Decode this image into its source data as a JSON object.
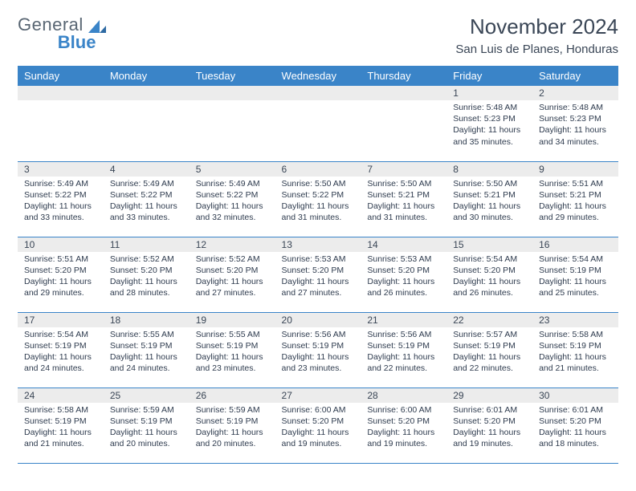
{
  "logo": {
    "general": "General",
    "blue": "Blue"
  },
  "header": {
    "month_title": "November 2024",
    "location": "San Luis de Planes, Honduras"
  },
  "colors": {
    "header_bg": "#3a84c8",
    "header_text": "#ffffff",
    "rule": "#3a84c8",
    "daynum_bg": "#ececec",
    "body_text": "#2e3b4e",
    "logo_gray": "#596673",
    "logo_blue": "#3a84c8"
  },
  "weekday_headers": [
    "Sunday",
    "Monday",
    "Tuesday",
    "Wednesday",
    "Thursday",
    "Friday",
    "Saturday"
  ],
  "weeks": [
    [
      {
        "empty": true
      },
      {
        "empty": true
      },
      {
        "empty": true
      },
      {
        "empty": true
      },
      {
        "empty": true
      },
      {
        "num": "1",
        "sunrise": "Sunrise: 5:48 AM",
        "sunset": "Sunset: 5:23 PM",
        "daylight": "Daylight: 11 hours and 35 minutes."
      },
      {
        "num": "2",
        "sunrise": "Sunrise: 5:48 AM",
        "sunset": "Sunset: 5:23 PM",
        "daylight": "Daylight: 11 hours and 34 minutes."
      }
    ],
    [
      {
        "num": "3",
        "sunrise": "Sunrise: 5:49 AM",
        "sunset": "Sunset: 5:22 PM",
        "daylight": "Daylight: 11 hours and 33 minutes."
      },
      {
        "num": "4",
        "sunrise": "Sunrise: 5:49 AM",
        "sunset": "Sunset: 5:22 PM",
        "daylight": "Daylight: 11 hours and 33 minutes."
      },
      {
        "num": "5",
        "sunrise": "Sunrise: 5:49 AM",
        "sunset": "Sunset: 5:22 PM",
        "daylight": "Daylight: 11 hours and 32 minutes."
      },
      {
        "num": "6",
        "sunrise": "Sunrise: 5:50 AM",
        "sunset": "Sunset: 5:22 PM",
        "daylight": "Daylight: 11 hours and 31 minutes."
      },
      {
        "num": "7",
        "sunrise": "Sunrise: 5:50 AM",
        "sunset": "Sunset: 5:21 PM",
        "daylight": "Daylight: 11 hours and 31 minutes."
      },
      {
        "num": "8",
        "sunrise": "Sunrise: 5:50 AM",
        "sunset": "Sunset: 5:21 PM",
        "daylight": "Daylight: 11 hours and 30 minutes."
      },
      {
        "num": "9",
        "sunrise": "Sunrise: 5:51 AM",
        "sunset": "Sunset: 5:21 PM",
        "daylight": "Daylight: 11 hours and 29 minutes."
      }
    ],
    [
      {
        "num": "10",
        "sunrise": "Sunrise: 5:51 AM",
        "sunset": "Sunset: 5:20 PM",
        "daylight": "Daylight: 11 hours and 29 minutes."
      },
      {
        "num": "11",
        "sunrise": "Sunrise: 5:52 AM",
        "sunset": "Sunset: 5:20 PM",
        "daylight": "Daylight: 11 hours and 28 minutes."
      },
      {
        "num": "12",
        "sunrise": "Sunrise: 5:52 AM",
        "sunset": "Sunset: 5:20 PM",
        "daylight": "Daylight: 11 hours and 27 minutes."
      },
      {
        "num": "13",
        "sunrise": "Sunrise: 5:53 AM",
        "sunset": "Sunset: 5:20 PM",
        "daylight": "Daylight: 11 hours and 27 minutes."
      },
      {
        "num": "14",
        "sunrise": "Sunrise: 5:53 AM",
        "sunset": "Sunset: 5:20 PM",
        "daylight": "Daylight: 11 hours and 26 minutes."
      },
      {
        "num": "15",
        "sunrise": "Sunrise: 5:54 AM",
        "sunset": "Sunset: 5:20 PM",
        "daylight": "Daylight: 11 hours and 26 minutes."
      },
      {
        "num": "16",
        "sunrise": "Sunrise: 5:54 AM",
        "sunset": "Sunset: 5:19 PM",
        "daylight": "Daylight: 11 hours and 25 minutes."
      }
    ],
    [
      {
        "num": "17",
        "sunrise": "Sunrise: 5:54 AM",
        "sunset": "Sunset: 5:19 PM",
        "daylight": "Daylight: 11 hours and 24 minutes."
      },
      {
        "num": "18",
        "sunrise": "Sunrise: 5:55 AM",
        "sunset": "Sunset: 5:19 PM",
        "daylight": "Daylight: 11 hours and 24 minutes."
      },
      {
        "num": "19",
        "sunrise": "Sunrise: 5:55 AM",
        "sunset": "Sunset: 5:19 PM",
        "daylight": "Daylight: 11 hours and 23 minutes."
      },
      {
        "num": "20",
        "sunrise": "Sunrise: 5:56 AM",
        "sunset": "Sunset: 5:19 PM",
        "daylight": "Daylight: 11 hours and 23 minutes."
      },
      {
        "num": "21",
        "sunrise": "Sunrise: 5:56 AM",
        "sunset": "Sunset: 5:19 PM",
        "daylight": "Daylight: 11 hours and 22 minutes."
      },
      {
        "num": "22",
        "sunrise": "Sunrise: 5:57 AM",
        "sunset": "Sunset: 5:19 PM",
        "daylight": "Daylight: 11 hours and 22 minutes."
      },
      {
        "num": "23",
        "sunrise": "Sunrise: 5:58 AM",
        "sunset": "Sunset: 5:19 PM",
        "daylight": "Daylight: 11 hours and 21 minutes."
      }
    ],
    [
      {
        "num": "24",
        "sunrise": "Sunrise: 5:58 AM",
        "sunset": "Sunset: 5:19 PM",
        "daylight": "Daylight: 11 hours and 21 minutes."
      },
      {
        "num": "25",
        "sunrise": "Sunrise: 5:59 AM",
        "sunset": "Sunset: 5:19 PM",
        "daylight": "Daylight: 11 hours and 20 minutes."
      },
      {
        "num": "26",
        "sunrise": "Sunrise: 5:59 AM",
        "sunset": "Sunset: 5:19 PM",
        "daylight": "Daylight: 11 hours and 20 minutes."
      },
      {
        "num": "27",
        "sunrise": "Sunrise: 6:00 AM",
        "sunset": "Sunset: 5:20 PM",
        "daylight": "Daylight: 11 hours and 19 minutes."
      },
      {
        "num": "28",
        "sunrise": "Sunrise: 6:00 AM",
        "sunset": "Sunset: 5:20 PM",
        "daylight": "Daylight: 11 hours and 19 minutes."
      },
      {
        "num": "29",
        "sunrise": "Sunrise: 6:01 AM",
        "sunset": "Sunset: 5:20 PM",
        "daylight": "Daylight: 11 hours and 19 minutes."
      },
      {
        "num": "30",
        "sunrise": "Sunrise: 6:01 AM",
        "sunset": "Sunset: 5:20 PM",
        "daylight": "Daylight: 11 hours and 18 minutes."
      }
    ]
  ]
}
